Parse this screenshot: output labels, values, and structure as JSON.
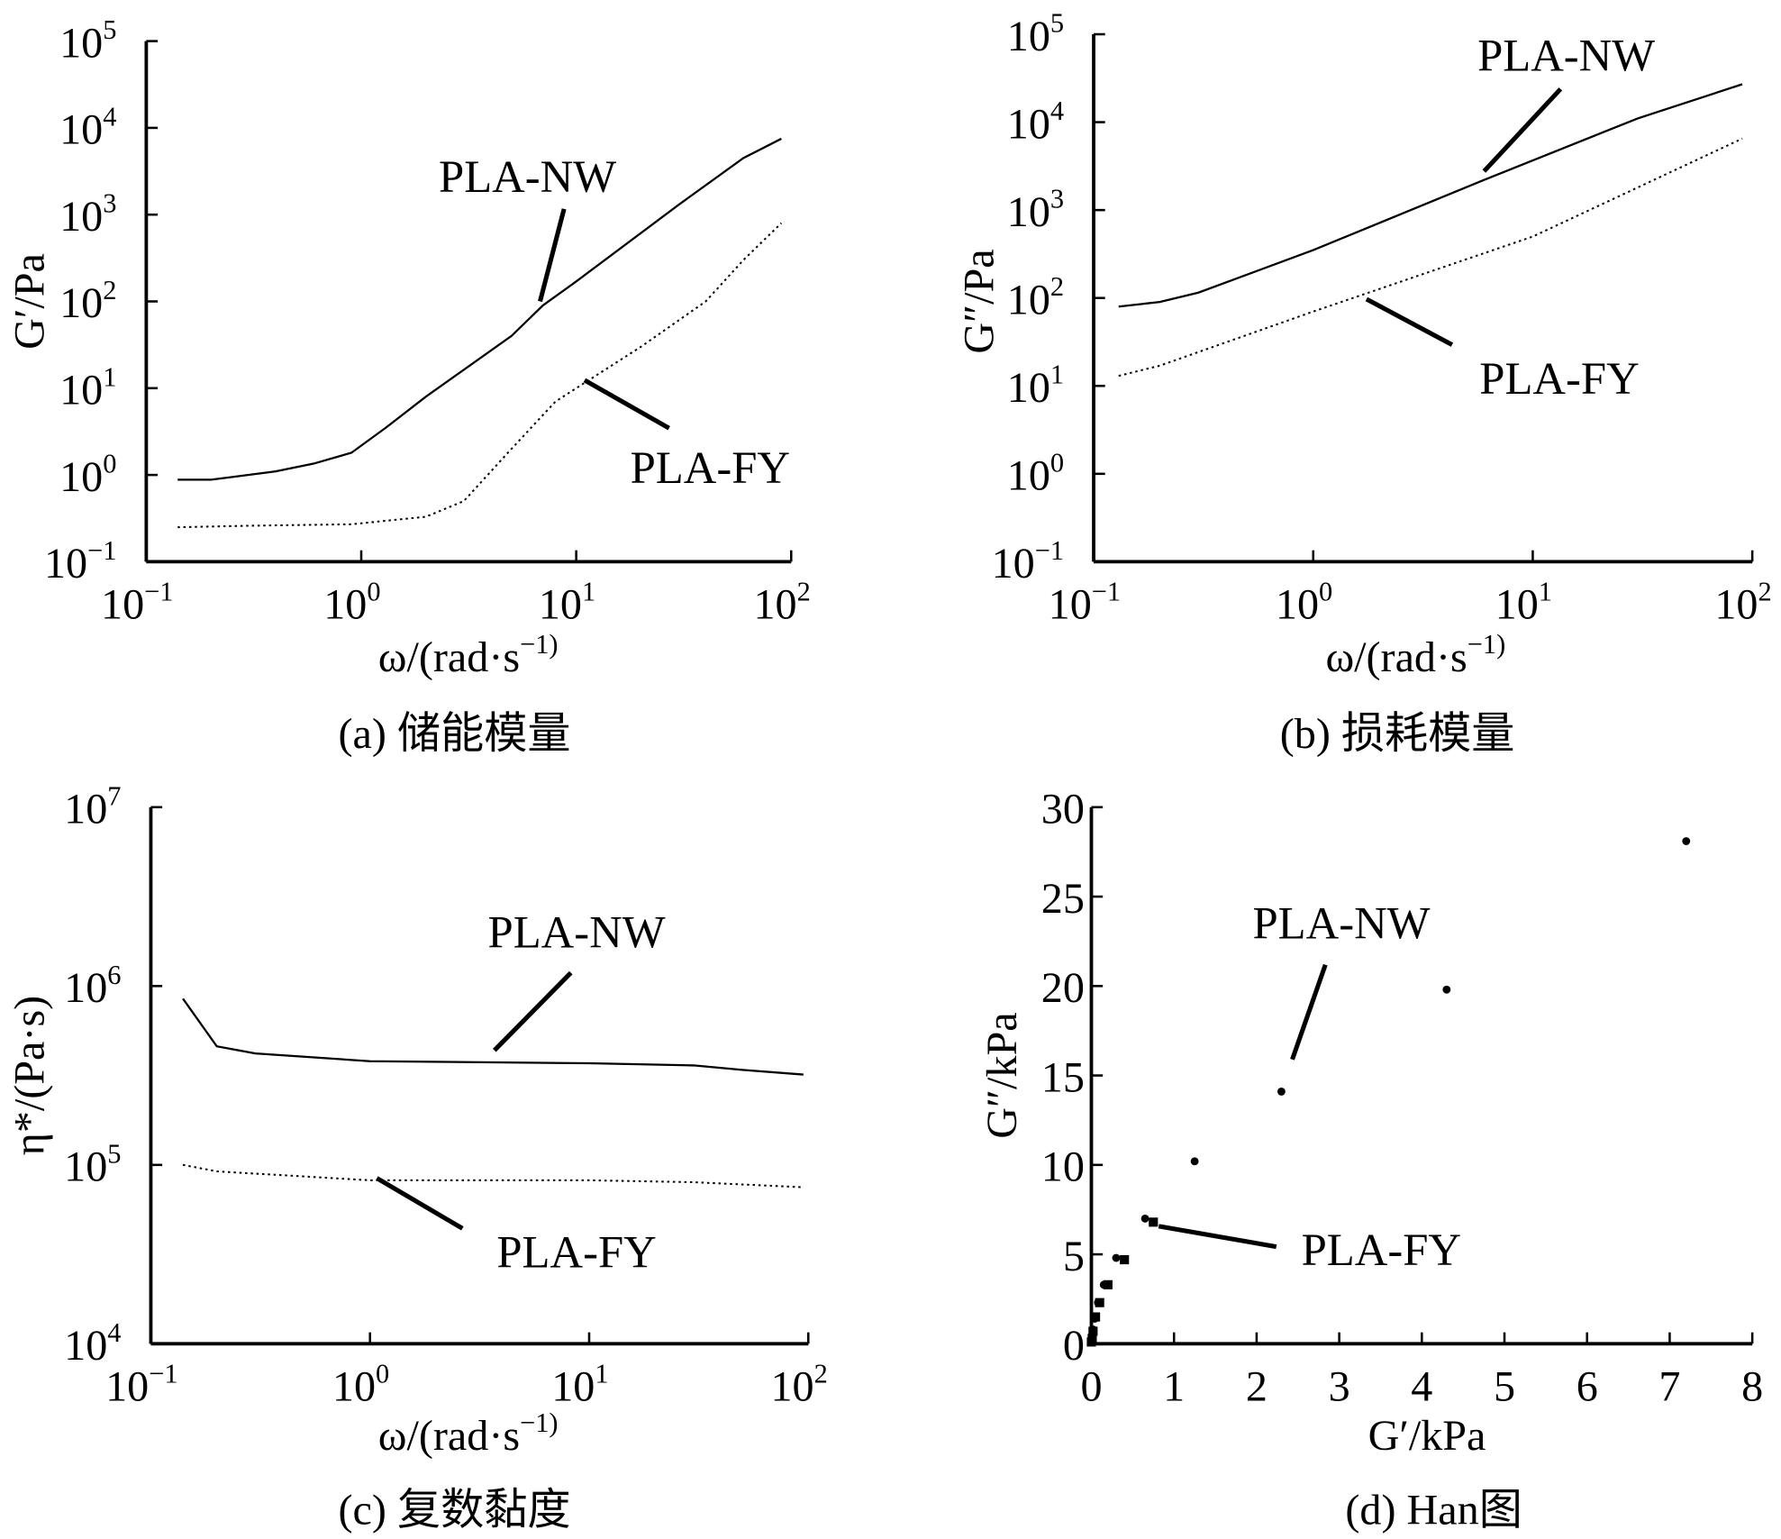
{
  "chart_data": [
    {
      "type": "line",
      "caption": "(a) 储能模量",
      "xlabel": "ω/(rad·s^-1)",
      "ylabel": "G′/Pa",
      "xscale": "log",
      "yscale": "log",
      "xlim": [
        0.1,
        100
      ],
      "ylim": [
        0.1,
        100000
      ],
      "xtick_labels": [
        "10^-1",
        "10^0",
        "10^1",
        "10^2"
      ],
      "ytick_labels": [
        "10^-1",
        "10^0",
        "10^1",
        "10^2",
        "10^3",
        "10^4",
        "10^5"
      ],
      "series": [
        {
          "name": "PLA-NW",
          "style": "solid",
          "x": [
            0.14,
            0.2,
            0.4,
            0.6,
            0.9,
            1.3,
            2,
            5,
            7,
            10,
            30,
            60,
            90
          ],
          "y": [
            0.88,
            0.88,
            1.1,
            1.35,
            1.8,
            3.5,
            8,
            40,
            90,
            170,
            1300,
            4500,
            7500
          ]
        },
        {
          "name": "PLA-FY",
          "style": "dotted",
          "x": [
            0.14,
            0.3,
            0.9,
            2,
            3,
            5,
            8,
            10,
            20,
            40,
            60,
            90
          ],
          "y": [
            0.25,
            0.26,
            0.27,
            0.33,
            0.5,
            2,
            7,
            10,
            30,
            100,
            300,
            800
          ]
        }
      ]
    },
    {
      "type": "line",
      "caption": "(b) 损耗模量",
      "xlabel": "ω/(rad·s^-1)",
      "ylabel": "G″/Pa",
      "xscale": "log",
      "yscale": "log",
      "xlim": [
        0.1,
        100
      ],
      "ylim": [
        0.1,
        100000
      ],
      "xtick_labels": [
        "10^-1",
        "10^0",
        "10^1",
        "10^2"
      ],
      "ytick_labels": [
        "10^-1",
        "10^0",
        "10^1",
        "10^2",
        "10^3",
        "10^4",
        "10^5"
      ],
      "series": [
        {
          "name": "PLA-NW",
          "style": "solid",
          "x": [
            0.13,
            0.2,
            0.3,
            1,
            6,
            30,
            90
          ],
          "y": [
            80,
            90,
            115,
            350,
            2200,
            11000,
            27000
          ]
        },
        {
          "name": "PLA-FY",
          "style": "dotted",
          "x": [
            0.13,
            0.2,
            1,
            10,
            90
          ],
          "y": [
            13,
            17,
            70,
            500,
            6500
          ]
        }
      ]
    },
    {
      "type": "line",
      "caption": "(c) 复数黏度",
      "xlabel": "ω/(rad·s^-1)",
      "ylabel": "η*/(Pa·s)",
      "xscale": "log",
      "yscale": "log",
      "xlim": [
        0.1,
        100
      ],
      "ylim": [
        10000,
        10000000
      ],
      "xtick_labels": [
        "10^-1",
        "10^0",
        "10^1",
        "10^2"
      ],
      "ytick_labels": [
        "10^4",
        "10^5",
        "10^6",
        "10^7"
      ],
      "series": [
        {
          "name": "PLA-NW",
          "style": "solid",
          "x": [
            0.14,
            0.2,
            0.3,
            1,
            10,
            30,
            50,
            95
          ],
          "y": [
            850000,
            460000,
            420000,
            380000,
            370000,
            360000,
            340000,
            320000
          ]
        },
        {
          "name": "PLA-FY",
          "style": "dotted",
          "x": [
            0.14,
            0.2,
            1,
            10,
            30,
            95
          ],
          "y": [
            100000,
            92000,
            82000,
            82000,
            80000,
            75000
          ]
        }
      ]
    },
    {
      "type": "scatter",
      "caption": "(d) Han图",
      "xlabel": "G′/kPa",
      "ylabel": "G″/kPa",
      "xscale": "linear",
      "yscale": "linear",
      "xlim": [
        0,
        8
      ],
      "ylim": [
        0,
        30
      ],
      "xtick_labels": [
        "0",
        "1",
        "2",
        "3",
        "4",
        "5",
        "6",
        "7",
        "8"
      ],
      "ytick_labels": [
        "0",
        "5",
        "10",
        "15",
        "20",
        "25",
        "30"
      ],
      "series": [
        {
          "name": "PLA-NW",
          "marker": "circle",
          "x": [
            7.2,
            4.3,
            2.3,
            1.25,
            0.65,
            0.3,
            0.15,
            0.08,
            0.04,
            0.02,
            0.01
          ],
          "y": [
            28.1,
            19.8,
            14.1,
            10.2,
            7.0,
            4.8,
            3.3,
            2.3,
            1.4,
            0.8,
            0.4
          ]
        },
        {
          "name": "PLA-FY",
          "marker": "square",
          "x": [
            0.75,
            0.4,
            0.2,
            0.1,
            0.05,
            0.02,
            0.01,
            0
          ],
          "y": [
            6.8,
            4.7,
            3.3,
            2.3,
            1.5,
            0.7,
            0.3,
            0.1
          ]
        }
      ]
    }
  ]
}
